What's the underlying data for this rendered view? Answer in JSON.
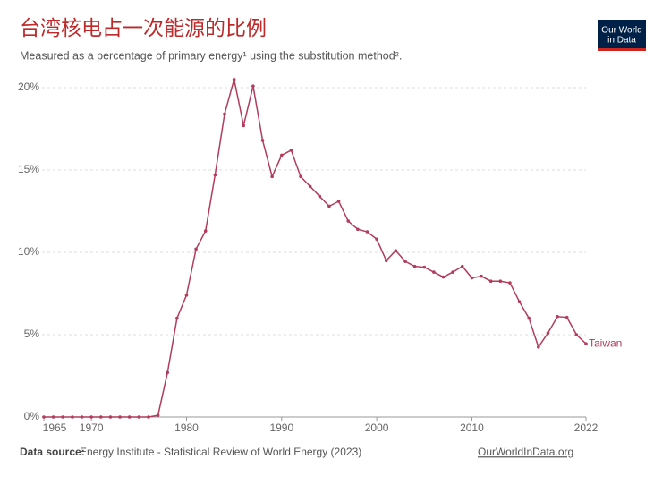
{
  "chart_data": {
    "type": "line",
    "title": "台湾核电占一次能源的比例",
    "subtitle": "Measured as a percentage of primary energy¹ using the substitution method².",
    "source_label": "Data source:",
    "source": "Energy Institute - Statistical Review of World Energy (2023)",
    "footer_link": "OurWorldInData.org",
    "logo": [
      "Our World",
      "in Data"
    ],
    "x": [
      1965,
      1966,
      1967,
      1968,
      1969,
      1970,
      1971,
      1972,
      1973,
      1974,
      1975,
      1976,
      1977,
      1978,
      1979,
      1980,
      1981,
      1982,
      1983,
      1984,
      1985,
      1986,
      1987,
      1988,
      1989,
      1990,
      1991,
      1992,
      1993,
      1994,
      1995,
      1996,
      1997,
      1998,
      1999,
      2000,
      2001,
      2002,
      2003,
      2004,
      2005,
      2006,
      2007,
      2008,
      2009,
      2010,
      2011,
      2012,
      2013,
      2014,
      2015,
      2016,
      2017,
      2018,
      2019,
      2020,
      2021,
      2022
    ],
    "series": [
      {
        "name": "Taiwan",
        "color": "#b23c5c",
        "values": [
          0,
          0,
          0,
          0,
          0,
          0,
          0,
          0,
          0,
          0,
          0,
          0,
          0.1,
          2.7,
          6.0,
          7.4,
          10.2,
          11.3,
          14.7,
          18.4,
          20.5,
          17.7,
          20.1,
          16.8,
          14.6,
          15.9,
          16.2,
          14.6,
          14.0,
          13.4,
          12.8,
          13.1,
          11.9,
          11.4,
          11.25,
          10.8,
          9.5,
          10.1,
          9.45,
          9.15,
          9.1,
          8.8,
          8.5,
          8.8,
          9.15,
          8.45,
          8.55,
          8.25,
          8.25,
          8.15,
          7.0,
          6.0,
          4.25,
          5.1,
          6.1,
          6.05,
          5.0,
          4.45
        ]
      }
    ],
    "xlim": [
      1965,
      2022
    ],
    "xticks": [
      1965,
      1970,
      1980,
      1990,
      2000,
      2010,
      2022
    ],
    "ylim": [
      0,
      20
    ],
    "yticks": [
      {
        "value": 0,
        "label": "0%"
      },
      {
        "value": 5,
        "label": "5%"
      },
      {
        "value": 10,
        "label": "10%"
      },
      {
        "value": 15,
        "label": "15%"
      },
      {
        "value": 20,
        "label": "20%"
      }
    ],
    "grid": true
  }
}
